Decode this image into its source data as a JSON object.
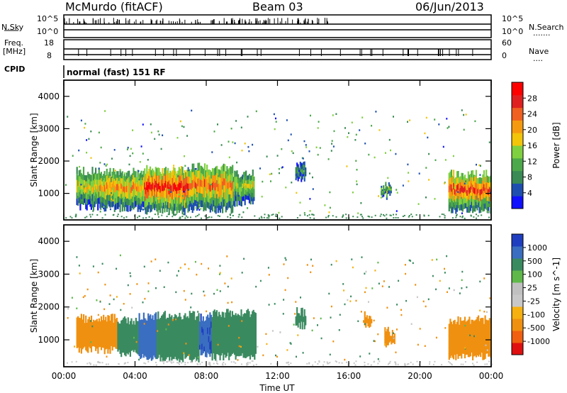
{
  "header": {
    "station": "McMurdo (fitACF)",
    "beam": "Beam 03",
    "date": "06/Jun/2013"
  },
  "strips": {
    "nsky_label": "N.Sky",
    "nsearch_label": "N.Search",
    "nsky_ticks": [
      "10^5",
      "10^0"
    ],
    "nsearch_ticks": [
      "10^5",
      "10^0"
    ],
    "freq_label_line1": "Freq.",
    "freq_label_line2": "[MHz]",
    "freq_ticks": [
      "18",
      "8"
    ],
    "nave_label": "Nave",
    "nave_ticks": [
      "60",
      "0"
    ],
    "cpid_label": "CPID",
    "cpid_value": "normal (fast) 151 RF"
  },
  "colors": {
    "power_scale": [
      "#1010ff",
      "#1e4fb0",
      "#3a8a55",
      "#4ca84a",
      "#7fd040",
      "#f2c40a",
      "#f59a10",
      "#f06020",
      "#e02020",
      "#ff0000"
    ],
    "velocity_scale": [
      "#e01010",
      "#f06010",
      "#f09010",
      "#f6b010",
      "#c8c8c8",
      "#c0c0c0",
      "#5fb84a",
      "#3a8a60",
      "#3a6ec0",
      "#1f3fc0"
    ]
  },
  "chart_data": [
    {
      "type": "heatmap",
      "name": "power-panel",
      "xlabel": "",
      "ylabel": "Slant Range [km]",
      "xlim": [
        0,
        24
      ],
      "ylim": [
        180,
        4500
      ],
      "yticks": [
        "1000",
        "2000",
        "3000",
        "4000"
      ],
      "ytick_values": [
        1000,
        2000,
        3000,
        4000
      ],
      "colorbar": {
        "label": "Power [dB]",
        "ticks": [
          "4",
          "8",
          "12",
          "16",
          "20",
          "24",
          "28"
        ],
        "range": [
          0,
          30
        ]
      },
      "regions": [
        {
          "t0": 0.7,
          "t1": 2.0,
          "r0": 600,
          "r1": 1700,
          "level": 15
        },
        {
          "t0": 2.0,
          "t1": 4.5,
          "r0": 550,
          "r1": 1650,
          "level": 18
        },
        {
          "t0": 4.5,
          "t1": 7.0,
          "r0": 450,
          "r1": 1750,
          "level": 24
        },
        {
          "t0": 7.0,
          "t1": 9.5,
          "r0": 500,
          "r1": 1800,
          "level": 20
        },
        {
          "t0": 9.5,
          "t1": 10.7,
          "r0": 700,
          "r1": 1600,
          "level": 14
        },
        {
          "t0": 13.0,
          "t1": 13.6,
          "r0": 1450,
          "r1": 1850,
          "level": 8
        },
        {
          "t0": 17.8,
          "t1": 18.4,
          "r0": 900,
          "r1": 1250,
          "level": 12
        },
        {
          "t0": 21.6,
          "t1": 24.0,
          "r0": 500,
          "r1": 1600,
          "level": 22
        }
      ]
    },
    {
      "type": "heatmap",
      "name": "velocity-panel",
      "xlabel": "Time UT",
      "ylabel": "Slant Range [km]",
      "xlim": [
        0,
        24
      ],
      "ylim": [
        180,
        4500
      ],
      "xticks": [
        "00:00",
        "04:00",
        "08:00",
        "12:00",
        "16:00",
        "20:00",
        "00:00"
      ],
      "xtick_values": [
        0,
        4,
        8,
        12,
        16,
        20,
        24
      ],
      "yticks": [
        "1000",
        "2000",
        "3000",
        "4000"
      ],
      "ytick_values": [
        1000,
        2000,
        3000,
        4000
      ],
      "colorbar": {
        "label": "Velocity [m s^-1]",
        "ticks": [
          "-1000",
          "-500",
          "-100",
          "-25",
          "25",
          "100",
          "500",
          "1000"
        ]
      },
      "regions": [
        {
          "t0": 0.7,
          "t1": 3.0,
          "r0": 700,
          "r1": 1650,
          "level": -300
        },
        {
          "t0": 3.0,
          "t1": 4.2,
          "r0": 600,
          "r1": 1600,
          "level": 200
        },
        {
          "t0": 4.2,
          "t1": 5.2,
          "r0": 500,
          "r1": 1700,
          "level": 800
        },
        {
          "t0": 5.2,
          "t1": 7.6,
          "r0": 450,
          "r1": 1750,
          "level": 200
        },
        {
          "t0": 7.6,
          "t1": 8.3,
          "r0": 600,
          "r1": 1700,
          "level": 900
        },
        {
          "t0": 8.3,
          "t1": 10.8,
          "r0": 500,
          "r1": 1800,
          "level": 200
        },
        {
          "t0": 13.0,
          "t1": 13.6,
          "r0": 1450,
          "r1": 1850,
          "level": 150
        },
        {
          "t0": 16.8,
          "t1": 17.3,
          "r0": 1500,
          "r1": 1750,
          "level": -300
        },
        {
          "t0": 18.0,
          "t1": 18.6,
          "r0": 850,
          "r1": 1250,
          "level": -300
        },
        {
          "t0": 21.6,
          "t1": 24.0,
          "r0": 500,
          "r1": 1600,
          "level": -200
        }
      ]
    }
  ]
}
